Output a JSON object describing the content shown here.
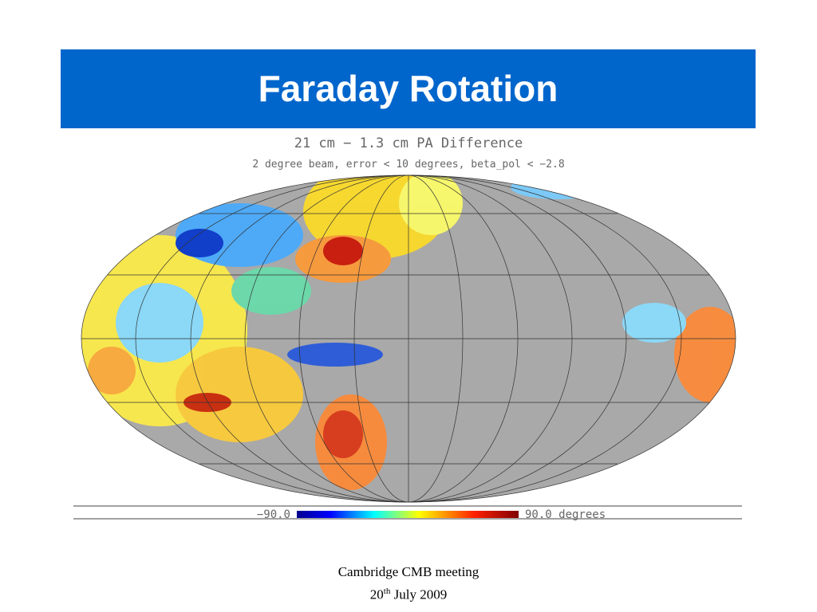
{
  "header": {
    "title": "Faraday Rotation"
  },
  "map": {
    "title": "21 cm − 1.3 cm PA Difference",
    "subtitle": "2 degree beam, error < 10 degrees, beta_pol < −2.8",
    "colorbar": {
      "min_label": "−90.0",
      "max_label": "90.0 degrees"
    }
  },
  "footer": {
    "line1": "Cambridge CMB meeting",
    "day": "20",
    "day_suffix": "th",
    "rest": "July 2009"
  }
}
